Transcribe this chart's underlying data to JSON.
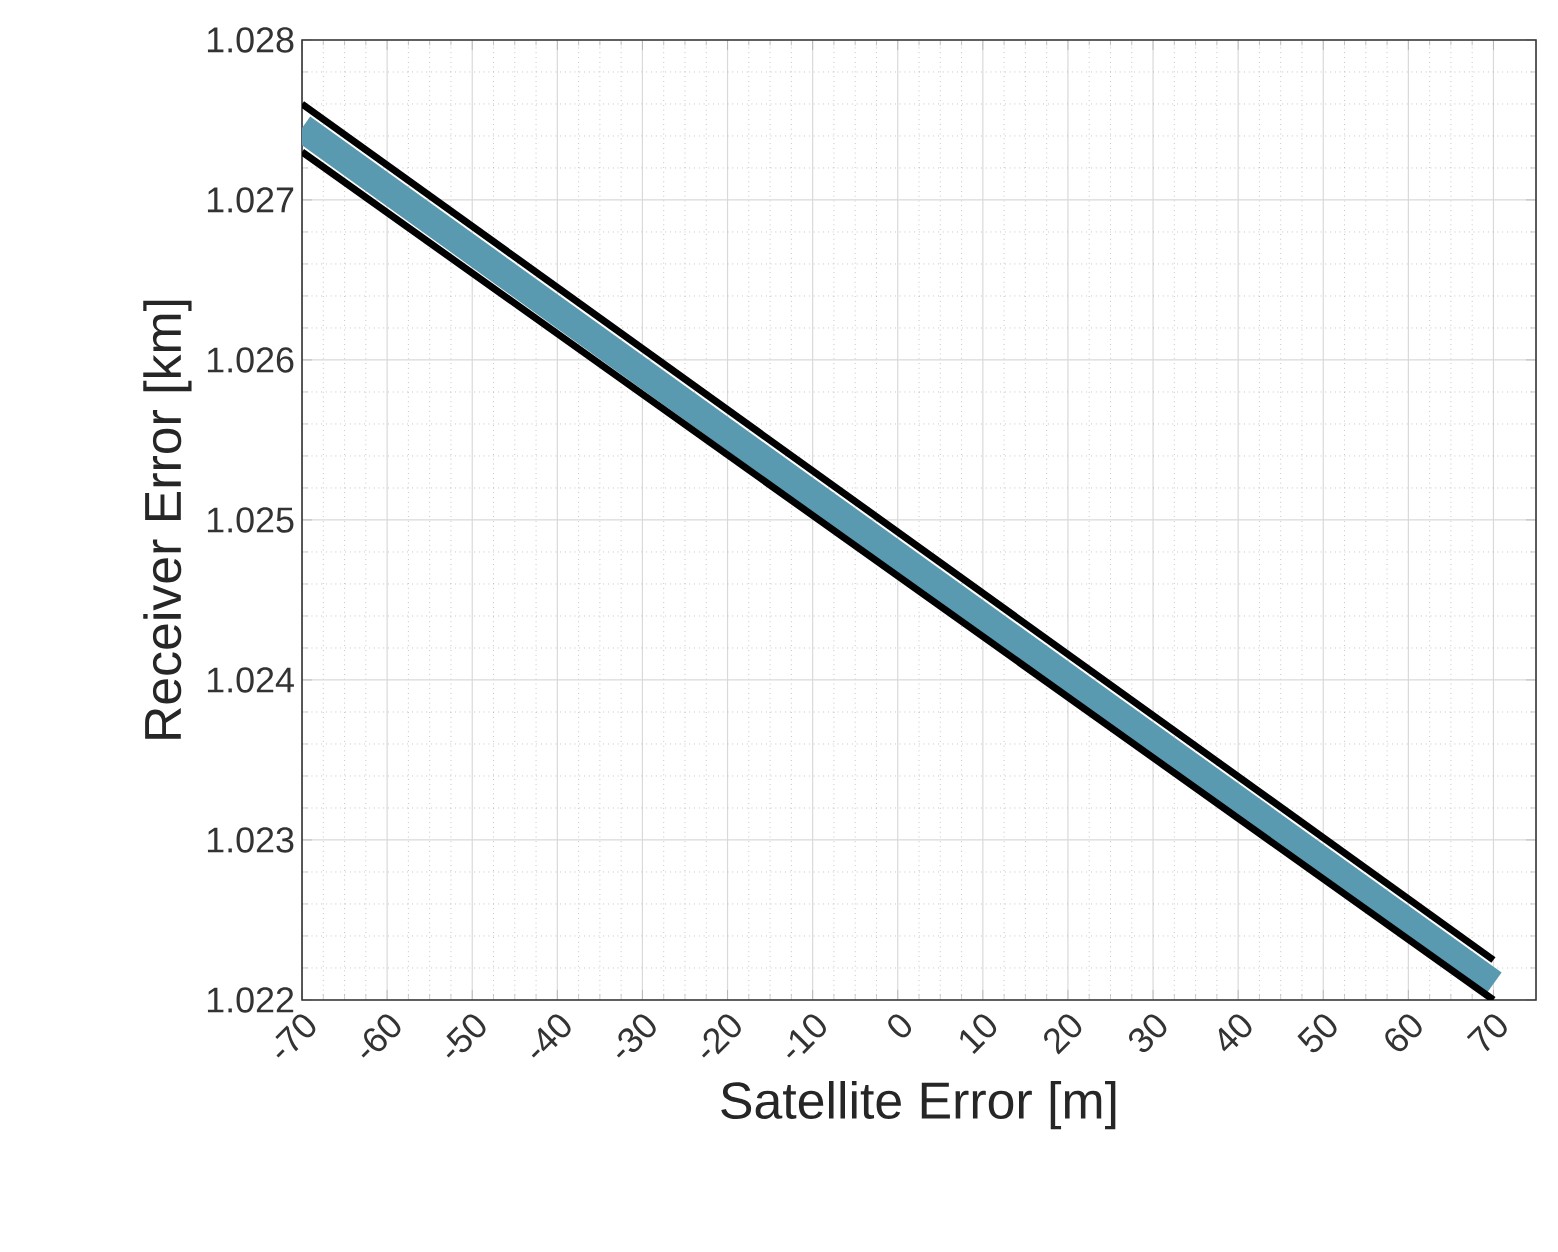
{
  "chart_data": {
    "type": "line",
    "xlabel": "Satellite Error [m]",
    "ylabel": "Receiver Error [km]",
    "x": [
      -70,
      70
    ],
    "series": [
      {
        "color": "#5a9ab0",
        "values": [
          1.02745,
          1.0221
        ]
      },
      {
        "color": "#000000",
        "values": [
          1.0276,
          1.02225
        ]
      },
      {
        "color": "#000000",
        "values": [
          1.0273,
          1.022
        ]
      }
    ],
    "xlim": [
      -70,
      75
    ],
    "ylim": [
      1.022,
      1.028
    ],
    "xticks": [
      -70,
      -60,
      -50,
      -40,
      -30,
      -20,
      -10,
      0,
      10,
      20,
      30,
      40,
      50,
      60,
      70
    ],
    "yticks": [
      1.022,
      1.023,
      1.024,
      1.025,
      1.026,
      1.027,
      1.028
    ],
    "grid": true,
    "marker": "none",
    "line_style": "solid"
  }
}
